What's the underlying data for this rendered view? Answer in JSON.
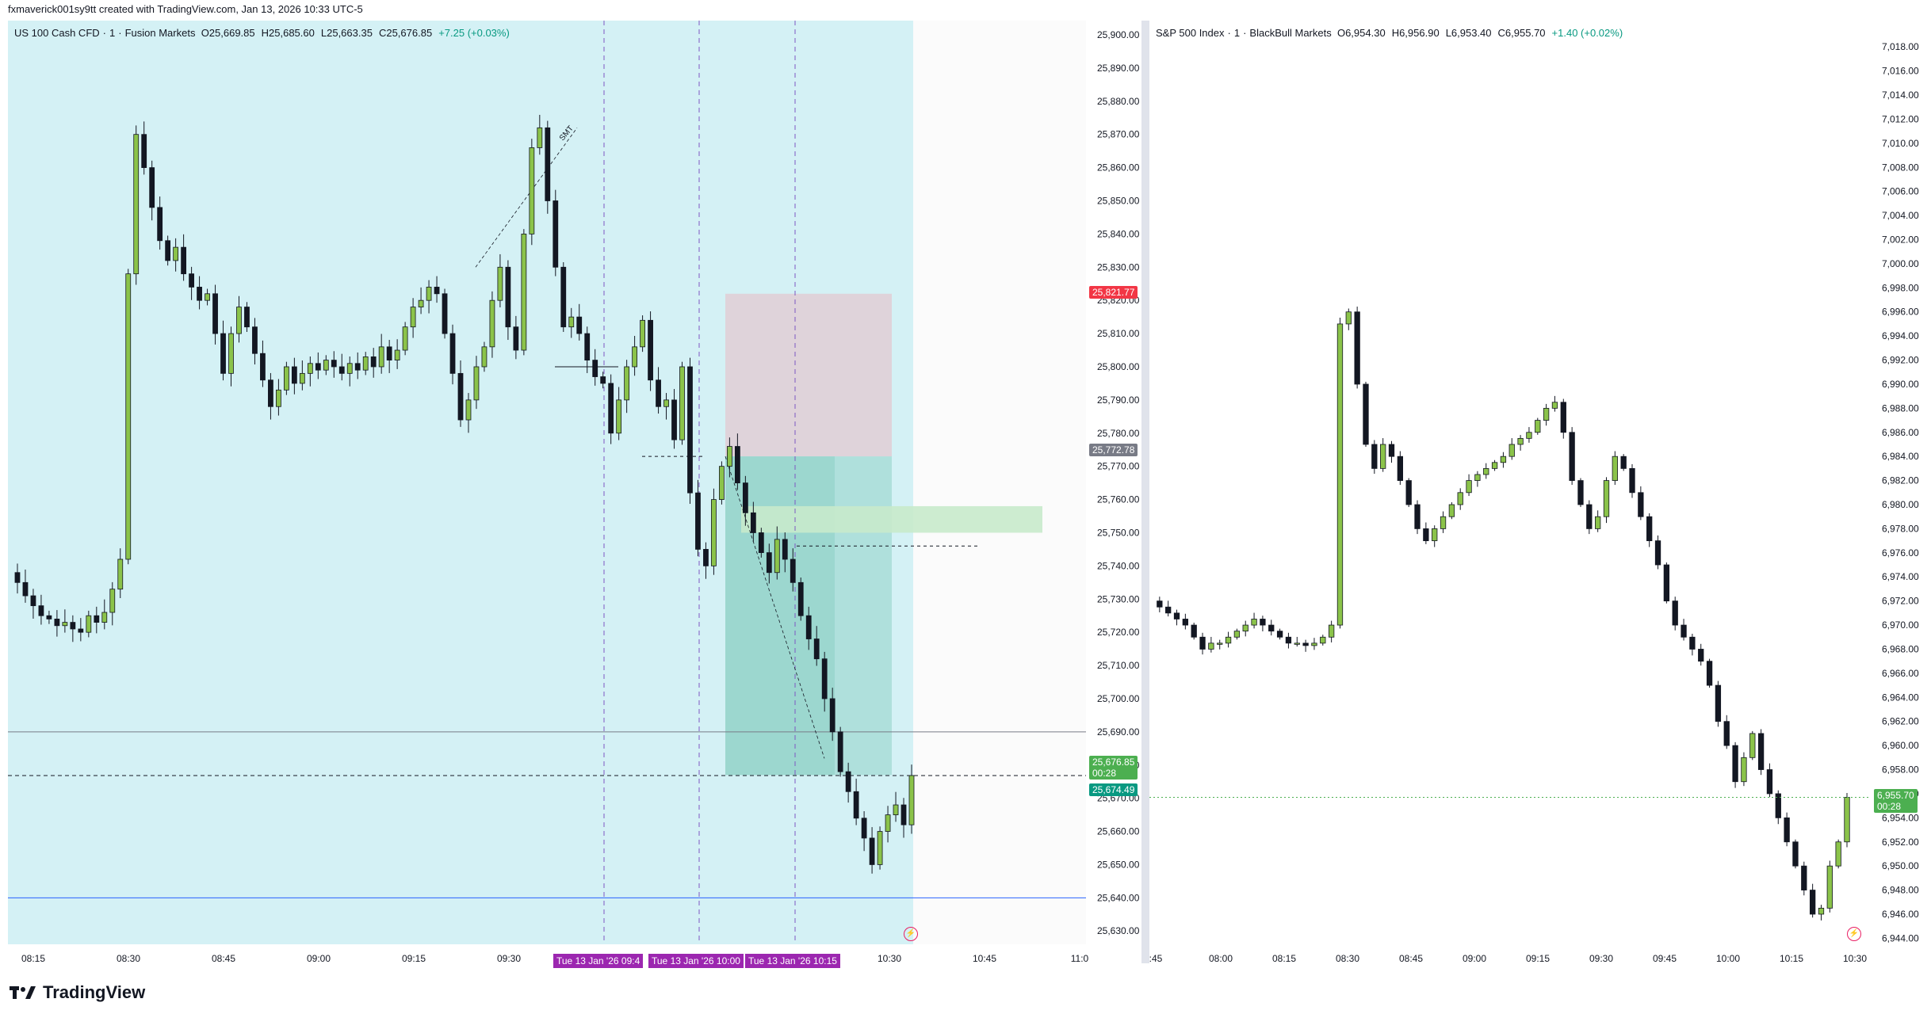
{
  "header": {
    "text": "fxmaverick001sy9tt created with TradingView.com, Jan 13, 2026 10:33 UTC-5"
  },
  "footer": {
    "brand": "TradingView"
  },
  "colors": {
    "up": "#8bc34a",
    "down": "#131722",
    "left_bg": "#d4f1f5",
    "red_zone": "#e0cfd7",
    "green_zone": "#8fd1c7",
    "green_light": "#c8eacb",
    "red_tag": "#f23645",
    "green_tag": "#4caf50",
    "teal_tag": "#089981",
    "gray_tag": "#787b86",
    "purple": "#9c27b0"
  },
  "left": {
    "legend": {
      "symbol": "US 100 Cash CFD",
      "tf": "1",
      "broker": "Fusion Markets",
      "o": "O25,669.85",
      "h": "H25,685.60",
      "l": "L25,663.35",
      "c": "C25,676.85",
      "chg": "+7.25 (+0.03%)"
    },
    "tags": {
      "red": "25,821.77",
      "gray": "25,772.78",
      "green": "25,676.85",
      "timer": "00:28",
      "teal": "25,674.49"
    },
    "time_badges": [
      "Tue 13 Jan '26  09:4",
      "Tue 13 Jan '26  10:00",
      "Tue 13 Jan '26  10:15"
    ],
    "annotation": "SMT"
  },
  "right": {
    "legend": {
      "symbol": "S&P 500 Index",
      "tf": "1",
      "broker": "BlackBull Markets",
      "o": "O6,954.30",
      "h": "H6,956.90",
      "l": "L6,953.40",
      "c": "C6,955.70",
      "chg": "+1.40 (+0.02%)"
    },
    "tags": {
      "green": "6,955.70",
      "timer": "00:28"
    }
  },
  "chart_data": [
    {
      "type": "candlestick",
      "title": "US 100 Cash CFD · 1 · Fusion Markets",
      "y_ticks": [
        "25,900.00",
        "25,890.00",
        "25,880.00",
        "25,870.00",
        "25,860.00",
        "25,850.00",
        "25,840.00",
        "25,830.00",
        "25,820.00",
        "25,810.00",
        "25,800.00",
        "25,790.00",
        "25,780.00",
        "25,770.00",
        "25,760.00",
        "25,750.00",
        "25,740.00",
        "25,730.00",
        "25,720.00",
        "25,710.00",
        "25,700.00",
        "25,690.00",
        "25,680.00",
        "25,670.00",
        "25,660.00",
        "25,650.00",
        "25,640.00",
        "25,630.00"
      ],
      "x_ticks": [
        "08:15",
        "08:30",
        "08:45",
        "09:00",
        "09:15",
        "09:30",
        "10:30",
        "10:45",
        "11:0"
      ],
      "ylim": [
        25626,
        25900
      ],
      "close_path": [
        25738,
        25735,
        25731,
        25728,
        25725,
        25724,
        25722,
        25723,
        25721,
        25720,
        25725,
        25723,
        25726,
        25733,
        25742,
        25828,
        25870,
        25860,
        25848,
        25838,
        25832,
        25836,
        25828,
        25824,
        25820,
        25822,
        25810,
        25798,
        25810,
        25818,
        25812,
        25804,
        25796,
        25788,
        25793,
        25800,
        25795,
        25798,
        25801,
        25799,
        25802,
        25800,
        25798,
        25801,
        25799,
        25803,
        25800,
        25806,
        25802,
        25805,
        25812,
        25818,
        25820,
        25824,
        25822,
        25810,
        25798,
        25784,
        25790,
        25800,
        25806,
        25820,
        25830,
        25812,
        25805,
        25840,
        25866,
        25872,
        25850,
        25830,
        25812,
        25815,
        25810,
        25802,
        25797,
        25795,
        25780,
        25790,
        25800,
        25806,
        25814,
        25796,
        25788,
        25790,
        25778,
        25800,
        25762,
        25745,
        25740,
        25760,
        25770,
        25776,
        25765,
        25756,
        25750,
        25744,
        25738,
        25748,
        25742,
        25735,
        25725,
        25718,
        25712,
        25700,
        25690,
        25678,
        25672,
        25664,
        25658,
        25650,
        25660,
        25665,
        25668,
        25662,
        25676.85
      ]
    },
    {
      "type": "candlestick",
      "title": "S&P 500 Index · 1 · BlackBull Markets",
      "y_ticks": [
        "7,018.00",
        "7,016.00",
        "7,014.00",
        "7,012.00",
        "7,010.00",
        "7,008.00",
        "7,006.00",
        "7,004.00",
        "7,002.00",
        "7,000.00",
        "6,998.00",
        "6,996.00",
        "6,994.00",
        "6,992.00",
        "6,990.00",
        "6,988.00",
        "6,986.00",
        "6,984.00",
        "6,982.00",
        "6,980.00",
        "6,978.00",
        "6,976.00",
        "6,974.00",
        "6,972.00",
        "6,970.00",
        "6,968.00",
        "6,966.00",
        "6,964.00",
        "6,962.00",
        "6,960.00",
        "6,958.00",
        "6,956.00",
        "6,954.00",
        "6,952.00",
        "6,950.00",
        "6,948.00",
        "6,946.00",
        "6,944.00"
      ],
      "x_ticks": [
        ":45",
        "08:00",
        "08:15",
        "08:30",
        "08:45",
        "09:00",
        "09:15",
        "09:30",
        "09:45",
        "10:00",
        "10:15",
        "10:30"
      ],
      "ylim": [
        6943.5,
        7019
      ],
      "close_path": [
        6972,
        6971.5,
        6971,
        6970.5,
        6970,
        6969,
        6968,
        6968.5,
        6968.5,
        6969,
        6969.5,
        6970,
        6970.5,
        6970,
        6969.5,
        6969,
        6968.5,
        6968.5,
        6968.3,
        6968.5,
        6969,
        6970,
        6995,
        6996,
        6990,
        6985,
        6983,
        6985,
        6984,
        6982,
        6980,
        6978,
        6977,
        6978,
        6979,
        6980,
        6981,
        6982,
        6982.5,
        6983,
        6983.5,
        6984,
        6985,
        6985.5,
        6986,
        6987,
        6988,
        6988.5,
        6986,
        6982,
        6980,
        6978,
        6979,
        6982,
        6984,
        6983,
        6981,
        6979,
        6977,
        6975,
        6972,
        6970,
        6969,
        6968,
        6967,
        6965,
        6962,
        6960,
        6957,
        6959,
        6961,
        6958,
        6956,
        6954,
        6952,
        6950,
        6948,
        6946,
        6946.5,
        6950,
        6952,
        6955.7
      ]
    }
  ]
}
